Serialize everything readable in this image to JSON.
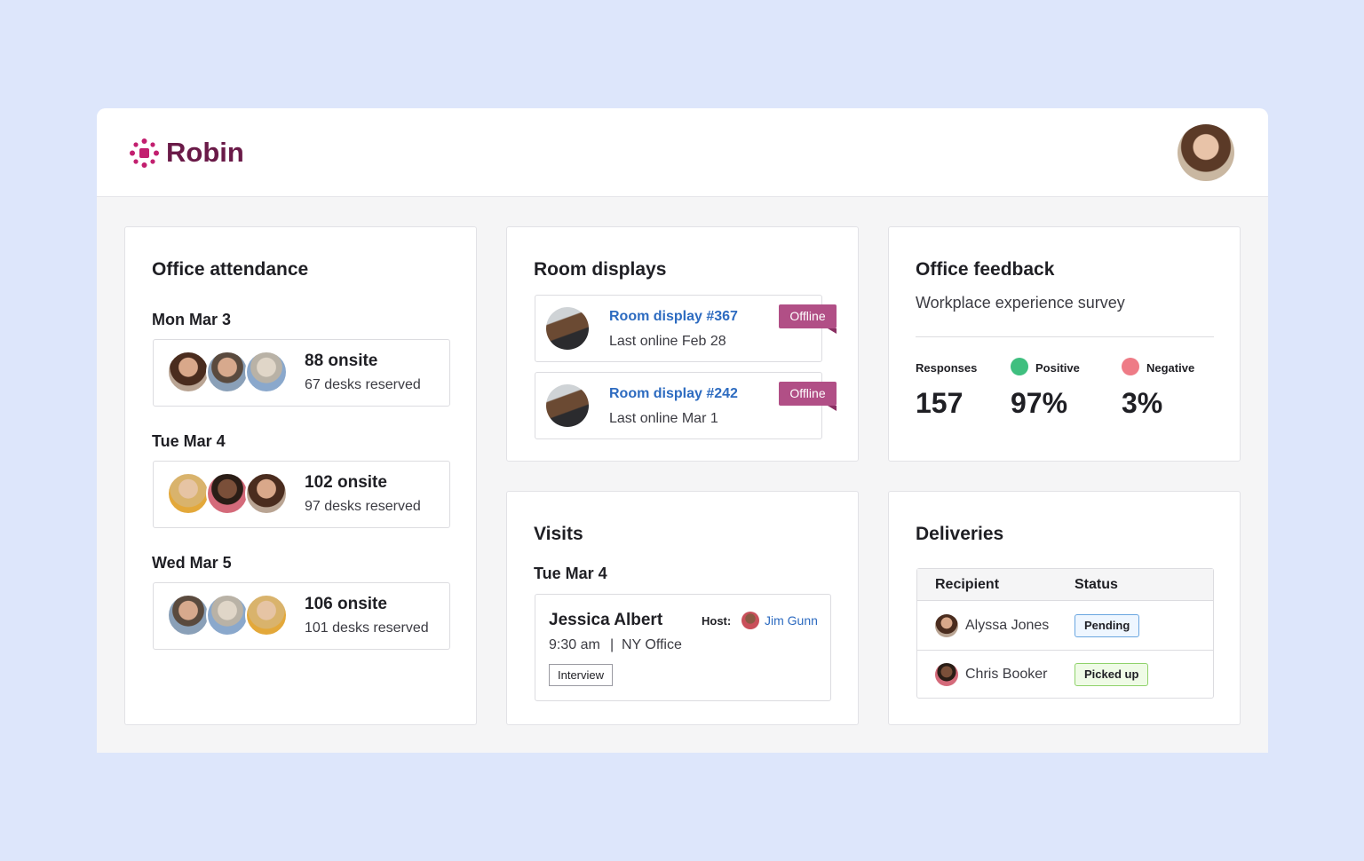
{
  "header": {
    "brand": "Robin"
  },
  "attendance": {
    "title": "Office attendance",
    "days": [
      {
        "date": "Mon Mar 3",
        "onsite": "88 onsite",
        "desks": "67 desks reserved"
      },
      {
        "date": "Tue Mar 4",
        "onsite": "102 onsite",
        "desks": "97 desks reserved"
      },
      {
        "date": "Wed Mar 5",
        "onsite": "106 onsite",
        "desks": "101 desks reserved"
      }
    ]
  },
  "room_displays": {
    "title": "Room displays",
    "items": [
      {
        "name": "Room display #367",
        "status": "Offline",
        "last_online": "Last online Feb 28"
      },
      {
        "name": "Room display #242",
        "status": "Offline",
        "last_online": "Last online Mar 1"
      }
    ]
  },
  "feedback": {
    "title": "Office feedback",
    "subtitle": "Workplace experience survey",
    "stats": [
      {
        "label": "Responses",
        "value": "157"
      },
      {
        "label": "Positive",
        "value": "97%"
      },
      {
        "label": "Negative",
        "value": "3%"
      }
    ]
  },
  "visits": {
    "title": "Visits",
    "date": "Tue Mar 4",
    "visitor": "Jessica Albert",
    "host_label": "Host:",
    "host": "Jim Gunn",
    "time": "9:30 am",
    "separator": "|",
    "location": "NY Office",
    "tag": "Interview"
  },
  "deliveries": {
    "title": "Deliveries",
    "columns": [
      "Recipient",
      "Status"
    ],
    "rows": [
      [
        "Alyssa Jones",
        "Pending"
      ],
      [
        "Chris Booker",
        "Picked up"
      ]
    ]
  }
}
